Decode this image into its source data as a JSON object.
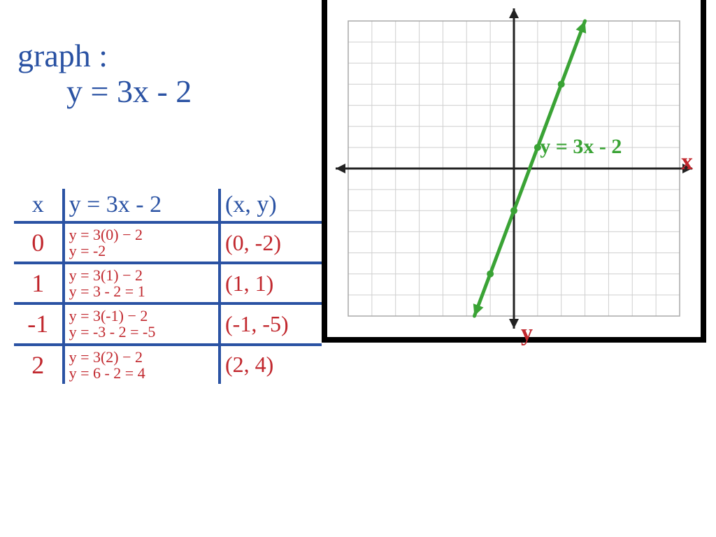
{
  "colors": {
    "blue": "#2a52a3",
    "red": "#c1272d",
    "green": "#3aa335",
    "black": "#000000",
    "grid": "#cfcfcf",
    "gridBold": "#a8a8a8",
    "white": "#ffffff"
  },
  "title": {
    "line1": "graph :",
    "line2": "y = 3x - 2"
  },
  "table": {
    "borderColor": "#2a52a3",
    "header": {
      "x": "x",
      "f": "y = 3x - 2",
      "p": "(x, y)",
      "color": "#2a52a3"
    },
    "rows": [
      {
        "x": "0",
        "work": [
          "y = 3(0) − 2",
          "y = -2"
        ],
        "point": "(0, -2)",
        "color": "#c1272d"
      },
      {
        "x": "1",
        "work": [
          "y = 3(1) − 2",
          "y = 3 - 2 = 1"
        ],
        "point": "(1, 1)",
        "color": "#c1272d"
      },
      {
        "x": "-1",
        "work": [
          "y = 3(-1) − 2",
          "y = -3 - 2 = -5"
        ],
        "point": "(-1, -5)",
        "color": "#c1272d"
      },
      {
        "x": "2",
        "work": [
          "y = 3(2) − 2",
          "y = 6 - 2 = 4"
        ],
        "point": "(2, 4)",
        "color": "#c1272d"
      }
    ]
  },
  "chart": {
    "type": "line",
    "background_color": "#ffffff",
    "grid_color": "#cfcfcf",
    "axis_color": "#222222",
    "xlim": [
      -7,
      7
    ],
    "ylim": [
      -7,
      7
    ],
    "tick_step": 1,
    "line": {
      "equation_label": "y = 3x - 2",
      "color": "#3aa335",
      "width": 5,
      "points": [
        {
          "x": -1.67,
          "y": -7
        },
        {
          "x": 3,
          "y": 7
        }
      ],
      "markers": [
        {
          "x": -1,
          "y": -5
        },
        {
          "x": 0,
          "y": -2
        },
        {
          "x": 1,
          "y": 1
        },
        {
          "x": 2,
          "y": 4
        }
      ],
      "marker_radius": 5
    },
    "axis_labels": {
      "x": "x",
      "y": "y",
      "x_color": "#c1272d",
      "y_color": "#c1272d"
    }
  }
}
